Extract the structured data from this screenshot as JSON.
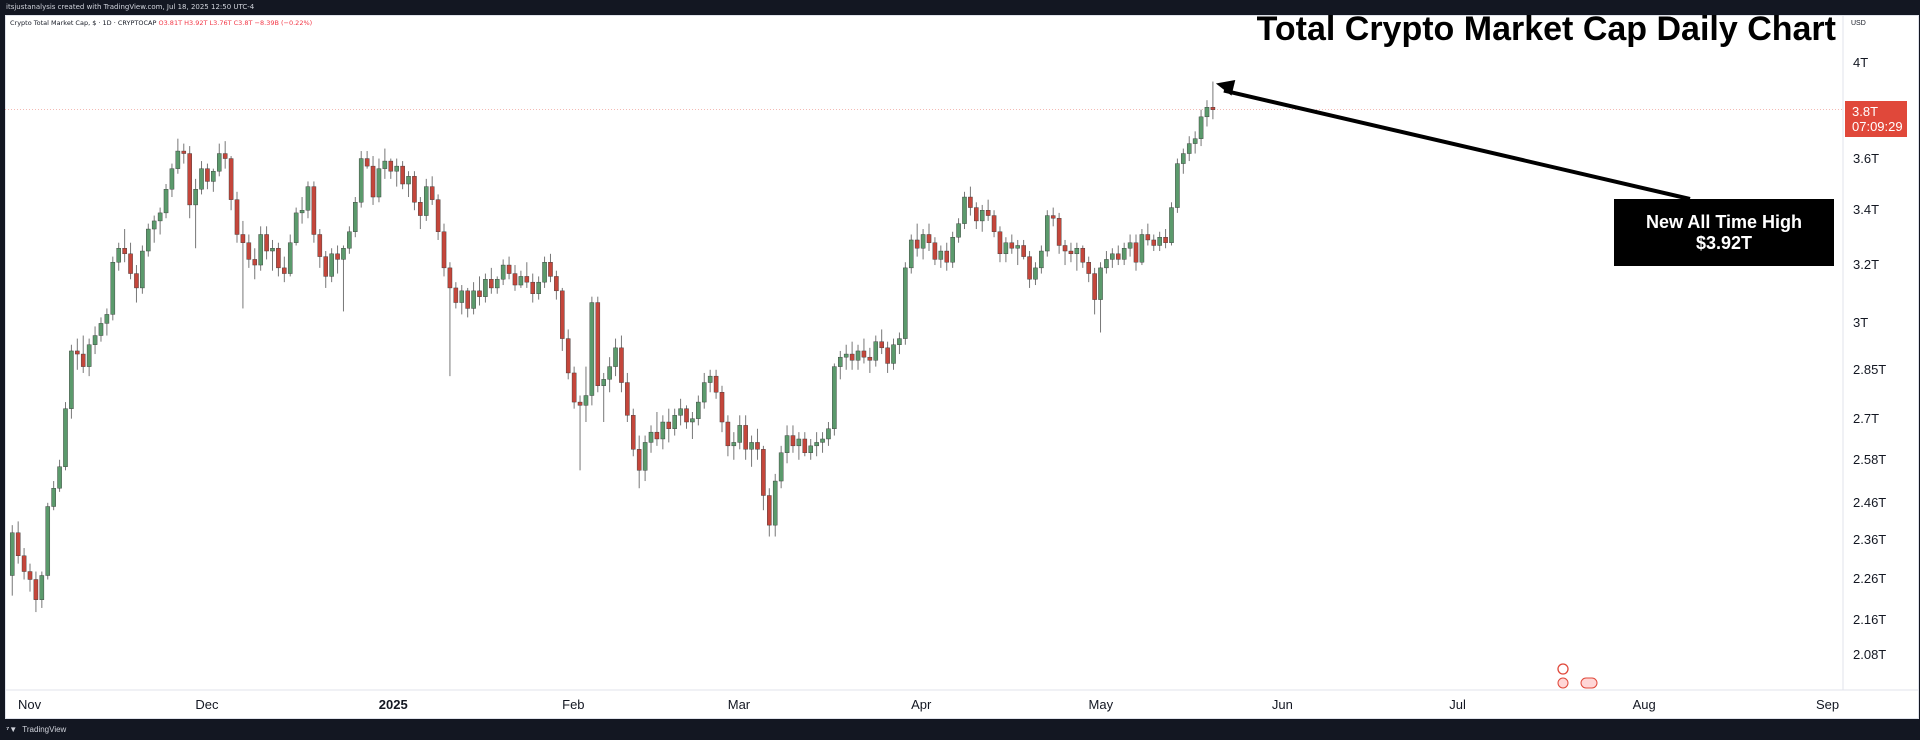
{
  "header": {
    "attribution": "itsjustanalysis created with TradingView.com, Jul 18, 2025 12:50 UTC-4"
  },
  "legend": {
    "symbol": "Crypto Total Market Cap, $ · 1D · CRYPTOCAP",
    "ohlc": "O3.81T H3.92T L3.76T C3.8T −8.39B (−0.22%)"
  },
  "footer": {
    "brand": "TradingView"
  },
  "price_badge": {
    "price": "3.8T",
    "countdown": "07:09:29"
  },
  "callout": {
    "line1": "New All Time High",
    "line2": "$3.92T"
  },
  "colors": {
    "up": "#5b9a6c",
    "down": "#c4463b",
    "wick": "#777777",
    "price_line": "#e0483a"
  },
  "chart_data": {
    "type": "candlestick",
    "title": "Total Crypto Market Cap Daily Chart",
    "currency": "USD",
    "scale": "log",
    "ylim": [
      2.0,
      4.15
    ],
    "y_ticks": [
      "4T",
      "3.6T",
      "3.4T",
      "3.2T",
      "3T",
      "2.85T",
      "2.7T",
      "2.58T",
      "2.46T",
      "2.36T",
      "2.26T",
      "2.16T",
      "2.08T"
    ],
    "y_tick_values": [
      4.0,
      3.6,
      3.4,
      3.2,
      3.0,
      2.85,
      2.7,
      2.58,
      2.46,
      2.36,
      2.26,
      2.16,
      2.08
    ],
    "x_ticks": [
      "Nov",
      "Dec",
      "2025",
      "Feb",
      "Mar",
      "Apr",
      "May",
      "Jun",
      "Jul",
      "Aug",
      "Sep"
    ],
    "x_tick_dates": [
      "2024-11-01",
      "2024-12-01",
      "2025-01-01",
      "2025-02-01",
      "2025-03-01",
      "2025-04-01",
      "2025-05-01",
      "2025-06-01",
      "2025-07-01",
      "2025-08-01",
      "2025-09-01"
    ],
    "start_date": "2024-10-29",
    "current_price": 3.8,
    "annotation": "New All Time High $3.92T",
    "ohlc": [
      [
        2.27,
        2.4,
        2.22,
        2.38
      ],
      [
        2.38,
        2.41,
        2.3,
        2.32
      ],
      [
        2.32,
        2.34,
        2.26,
        2.28
      ],
      [
        2.28,
        2.3,
        2.23,
        2.26
      ],
      [
        2.26,
        2.28,
        2.18,
        2.21
      ],
      [
        2.21,
        2.28,
        2.19,
        2.27
      ],
      [
        2.27,
        2.46,
        2.26,
        2.45
      ],
      [
        2.45,
        2.52,
        2.44,
        2.5
      ],
      [
        2.5,
        2.58,
        2.49,
        2.56
      ],
      [
        2.56,
        2.75,
        2.55,
        2.73
      ],
      [
        2.73,
        2.93,
        2.7,
        2.91
      ],
      [
        2.91,
        2.95,
        2.85,
        2.9
      ],
      [
        2.9,
        2.96,
        2.84,
        2.86
      ],
      [
        2.86,
        2.95,
        2.83,
        2.93
      ],
      [
        2.93,
        2.99,
        2.9,
        2.96
      ],
      [
        2.96,
        3.02,
        2.94,
        3.0
      ],
      [
        3.0,
        3.05,
        2.96,
        3.03
      ],
      [
        3.03,
        3.23,
        3.01,
        3.21
      ],
      [
        3.21,
        3.28,
        3.18,
        3.26
      ],
      [
        3.26,
        3.33,
        3.21,
        3.24
      ],
      [
        3.24,
        3.28,
        3.15,
        3.17
      ],
      [
        3.17,
        3.2,
        3.07,
        3.12
      ],
      [
        3.12,
        3.27,
        3.1,
        3.25
      ],
      [
        3.25,
        3.35,
        3.23,
        3.33
      ],
      [
        3.33,
        3.38,
        3.28,
        3.36
      ],
      [
        3.36,
        3.41,
        3.31,
        3.39
      ],
      [
        3.39,
        3.5,
        3.37,
        3.48
      ],
      [
        3.48,
        3.58,
        3.45,
        3.56
      ],
      [
        3.56,
        3.68,
        3.54,
        3.63
      ],
      [
        3.63,
        3.66,
        3.58,
        3.62
      ],
      [
        3.62,
        3.65,
        3.37,
        3.42
      ],
      [
        3.42,
        3.52,
        3.26,
        3.48
      ],
      [
        3.48,
        3.59,
        3.46,
        3.56
      ],
      [
        3.56,
        3.58,
        3.48,
        3.51
      ],
      [
        3.51,
        3.56,
        3.47,
        3.55
      ],
      [
        3.55,
        3.66,
        3.53,
        3.62
      ],
      [
        3.62,
        3.67,
        3.56,
        3.6
      ],
      [
        3.6,
        3.61,
        3.4,
        3.44
      ],
      [
        3.44,
        3.47,
        3.28,
        3.31
      ],
      [
        3.31,
        3.36,
        3.05,
        3.28
      ],
      [
        3.28,
        3.31,
        3.19,
        3.22
      ],
      [
        3.22,
        3.26,
        3.15,
        3.2
      ],
      [
        3.2,
        3.34,
        3.18,
        3.31
      ],
      [
        3.31,
        3.34,
        3.22,
        3.25
      ],
      [
        3.25,
        3.29,
        3.18,
        3.26
      ],
      [
        3.26,
        3.28,
        3.16,
        3.19
      ],
      [
        3.19,
        3.23,
        3.14,
        3.17
      ],
      [
        3.17,
        3.31,
        3.16,
        3.28
      ],
      [
        3.28,
        3.41,
        3.27,
        3.39
      ],
      [
        3.39,
        3.45,
        3.35,
        3.4
      ],
      [
        3.4,
        3.51,
        3.37,
        3.49
      ],
      [
        3.49,
        3.51,
        3.28,
        3.31
      ],
      [
        3.31,
        3.33,
        3.19,
        3.23
      ],
      [
        3.23,
        3.25,
        3.12,
        3.16
      ],
      [
        3.16,
        3.26,
        3.14,
        3.24
      ],
      [
        3.24,
        3.27,
        3.17,
        3.22
      ],
      [
        3.22,
        3.27,
        3.04,
        3.26
      ],
      [
        3.26,
        3.34,
        3.24,
        3.32
      ],
      [
        3.32,
        3.45,
        3.3,
        3.43
      ],
      [
        3.43,
        3.63,
        3.41,
        3.6
      ],
      [
        3.6,
        3.63,
        3.56,
        3.57
      ],
      [
        3.57,
        3.61,
        3.42,
        3.45
      ],
      [
        3.45,
        3.6,
        3.43,
        3.56
      ],
      [
        3.56,
        3.64,
        3.52,
        3.59
      ],
      [
        3.59,
        3.6,
        3.52,
        3.55
      ],
      [
        3.55,
        3.6,
        3.49,
        3.57
      ],
      [
        3.57,
        3.59,
        3.48,
        3.5
      ],
      [
        3.5,
        3.55,
        3.45,
        3.53
      ],
      [
        3.53,
        3.55,
        3.4,
        3.43
      ],
      [
        3.43,
        3.45,
        3.33,
        3.38
      ],
      [
        3.38,
        3.52,
        3.36,
        3.49
      ],
      [
        3.49,
        3.53,
        3.42,
        3.44
      ],
      [
        3.44,
        3.46,
        3.29,
        3.32
      ],
      [
        3.32,
        3.35,
        3.16,
        3.19
      ],
      [
        3.19,
        3.21,
        2.83,
        3.12
      ],
      [
        3.12,
        3.14,
        3.05,
        3.07
      ],
      [
        3.07,
        3.13,
        3.03,
        3.11
      ],
      [
        3.11,
        3.12,
        3.02,
        3.05
      ],
      [
        3.05,
        3.14,
        3.03,
        3.11
      ],
      [
        3.11,
        3.16,
        3.06,
        3.09
      ],
      [
        3.09,
        3.17,
        3.07,
        3.15
      ],
      [
        3.15,
        3.19,
        3.1,
        3.12
      ],
      [
        3.12,
        3.16,
        3.1,
        3.15
      ],
      [
        3.15,
        3.22,
        3.13,
        3.2
      ],
      [
        3.2,
        3.23,
        3.15,
        3.17
      ],
      [
        3.17,
        3.2,
        3.11,
        3.13
      ],
      [
        3.13,
        3.18,
        3.12,
        3.16
      ],
      [
        3.16,
        3.21,
        3.12,
        3.14
      ],
      [
        3.14,
        3.17,
        3.07,
        3.1
      ],
      [
        3.1,
        3.16,
        3.08,
        3.14
      ],
      [
        3.14,
        3.23,
        3.12,
        3.21
      ],
      [
        3.21,
        3.24,
        3.14,
        3.16
      ],
      [
        3.16,
        3.18,
        3.08,
        3.11
      ],
      [
        3.11,
        3.12,
        2.91,
        2.95
      ],
      [
        2.95,
        2.98,
        2.82,
        2.84
      ],
      [
        2.84,
        2.86,
        2.73,
        2.75
      ],
      [
        2.75,
        2.77,
        2.55,
        2.74
      ],
      [
        2.74,
        2.86,
        2.69,
        2.77
      ],
      [
        2.77,
        3.09,
        2.74,
        3.07
      ],
      [
        3.07,
        3.09,
        2.78,
        2.8
      ],
      [
        2.8,
        2.84,
        2.69,
        2.82
      ],
      [
        2.82,
        2.89,
        2.78,
        2.86
      ],
      [
        2.86,
        2.95,
        2.83,
        2.92
      ],
      [
        2.92,
        2.96,
        2.78,
        2.81
      ],
      [
        2.81,
        2.84,
        2.69,
        2.71
      ],
      [
        2.71,
        2.73,
        2.59,
        2.61
      ],
      [
        2.61,
        2.65,
        2.5,
        2.55
      ],
      [
        2.55,
        2.65,
        2.52,
        2.63
      ],
      [
        2.63,
        2.68,
        2.6,
        2.66
      ],
      [
        2.66,
        2.72,
        2.62,
        2.64
      ],
      [
        2.64,
        2.71,
        2.61,
        2.69
      ],
      [
        2.69,
        2.73,
        2.63,
        2.67
      ],
      [
        2.67,
        2.73,
        2.65,
        2.71
      ],
      [
        2.71,
        2.76,
        2.68,
        2.73
      ],
      [
        2.73,
        2.74,
        2.67,
        2.69
      ],
      [
        2.69,
        2.72,
        2.64,
        2.7
      ],
      [
        2.7,
        2.77,
        2.68,
        2.75
      ],
      [
        2.75,
        2.84,
        2.73,
        2.81
      ],
      [
        2.81,
        2.85,
        2.78,
        2.83
      ],
      [
        2.83,
        2.85,
        2.76,
        2.78
      ],
      [
        2.78,
        2.8,
        2.66,
        2.69
      ],
      [
        2.69,
        2.71,
        2.59,
        2.62
      ],
      [
        2.62,
        2.66,
        2.58,
        2.63
      ],
      [
        2.63,
        2.71,
        2.61,
        2.68
      ],
      [
        2.68,
        2.71,
        2.58,
        2.61
      ],
      [
        2.61,
        2.65,
        2.56,
        2.63
      ],
      [
        2.63,
        2.67,
        2.58,
        2.61
      ],
      [
        2.61,
        2.62,
        2.44,
        2.48
      ],
      [
        2.48,
        2.5,
        2.37,
        2.4
      ],
      [
        2.4,
        2.54,
        2.37,
        2.52
      ],
      [
        2.52,
        2.62,
        2.5,
        2.6
      ],
      [
        2.6,
        2.68,
        2.57,
        2.65
      ],
      [
        2.65,
        2.68,
        2.6,
        2.62
      ],
      [
        2.62,
        2.66,
        2.58,
        2.64
      ],
      [
        2.64,
        2.66,
        2.59,
        2.6
      ],
      [
        2.6,
        2.64,
        2.58,
        2.62
      ],
      [
        2.62,
        2.66,
        2.59,
        2.63
      ],
      [
        2.63,
        2.66,
        2.6,
        2.64
      ],
      [
        2.64,
        2.69,
        2.62,
        2.67
      ],
      [
        2.67,
        2.87,
        2.65,
        2.86
      ],
      [
        2.86,
        2.91,
        2.82,
        2.89
      ],
      [
        2.89,
        2.93,
        2.85,
        2.9
      ],
      [
        2.9,
        2.94,
        2.85,
        2.88
      ],
      [
        2.88,
        2.93,
        2.85,
        2.91
      ],
      [
        2.91,
        2.95,
        2.87,
        2.89
      ],
      [
        2.89,
        2.92,
        2.84,
        2.88
      ],
      [
        2.88,
        2.96,
        2.86,
        2.94
      ],
      [
        2.94,
        2.98,
        2.9,
        2.92
      ],
      [
        2.92,
        2.94,
        2.84,
        2.87
      ],
      [
        2.87,
        2.95,
        2.85,
        2.93
      ],
      [
        2.93,
        2.97,
        2.9,
        2.95
      ],
      [
        2.95,
        3.21,
        2.93,
        3.19
      ],
      [
        3.19,
        3.31,
        3.17,
        3.29
      ],
      [
        3.29,
        3.35,
        3.23,
        3.26
      ],
      [
        3.26,
        3.33,
        3.22,
        3.31
      ],
      [
        3.31,
        3.35,
        3.25,
        3.28
      ],
      [
        3.28,
        3.3,
        3.2,
        3.22
      ],
      [
        3.22,
        3.27,
        3.19,
        3.25
      ],
      [
        3.25,
        3.28,
        3.18,
        3.21
      ],
      [
        3.21,
        3.32,
        3.19,
        3.3
      ],
      [
        3.3,
        3.37,
        3.28,
        3.35
      ],
      [
        3.35,
        3.47,
        3.33,
        3.45
      ],
      [
        3.45,
        3.49,
        3.38,
        3.41
      ],
      [
        3.41,
        3.43,
        3.33,
        3.36
      ],
      [
        3.36,
        3.42,
        3.32,
        3.4
      ],
      [
        3.4,
        3.44,
        3.36,
        3.38
      ],
      [
        3.38,
        3.4,
        3.3,
        3.32
      ],
      [
        3.32,
        3.34,
        3.21,
        3.24
      ],
      [
        3.24,
        3.3,
        3.21,
        3.28
      ],
      [
        3.28,
        3.31,
        3.24,
        3.26
      ],
      [
        3.26,
        3.29,
        3.2,
        3.27
      ],
      [
        3.27,
        3.29,
        3.22,
        3.23
      ],
      [
        3.23,
        3.25,
        3.12,
        3.15
      ],
      [
        3.15,
        3.21,
        3.13,
        3.19
      ],
      [
        3.19,
        3.27,
        3.17,
        3.25
      ],
      [
        3.25,
        3.4,
        3.23,
        3.38
      ],
      [
        3.38,
        3.41,
        3.34,
        3.37
      ],
      [
        3.37,
        3.39,
        3.24,
        3.27
      ],
      [
        3.27,
        3.29,
        3.2,
        3.25
      ],
      [
        3.25,
        3.28,
        3.21,
        3.24
      ],
      [
        3.24,
        3.28,
        3.18,
        3.26
      ],
      [
        3.26,
        3.27,
        3.19,
        3.21
      ],
      [
        3.21,
        3.23,
        3.14,
        3.17
      ],
      [
        3.17,
        3.19,
        3.03,
        3.08
      ],
      [
        3.08,
        3.21,
        2.97,
        3.19
      ],
      [
        3.19,
        3.25,
        3.17,
        3.22
      ],
      [
        3.22,
        3.26,
        3.19,
        3.24
      ],
      [
        3.24,
        3.27,
        3.2,
        3.22
      ],
      [
        3.22,
        3.28,
        3.2,
        3.26
      ],
      [
        3.26,
        3.31,
        3.23,
        3.28
      ],
      [
        3.28,
        3.31,
        3.18,
        3.21
      ],
      [
        3.21,
        3.33,
        3.2,
        3.31
      ],
      [
        3.31,
        3.35,
        3.27,
        3.29
      ],
      [
        3.29,
        3.31,
        3.25,
        3.27
      ],
      [
        3.27,
        3.32,
        3.25,
        3.3
      ],
      [
        3.3,
        3.33,
        3.26,
        3.28
      ],
      [
        3.28,
        3.43,
        3.27,
        3.41
      ],
      [
        3.41,
        3.6,
        3.39,
        3.58
      ],
      [
        3.58,
        3.64,
        3.54,
        3.62
      ],
      [
        3.62,
        3.69,
        3.59,
        3.66
      ],
      [
        3.66,
        3.71,
        3.62,
        3.68
      ],
      [
        3.68,
        3.8,
        3.65,
        3.77
      ],
      [
        3.77,
        3.84,
        3.73,
        3.81
      ],
      [
        3.81,
        3.92,
        3.76,
        3.8
      ]
    ]
  }
}
